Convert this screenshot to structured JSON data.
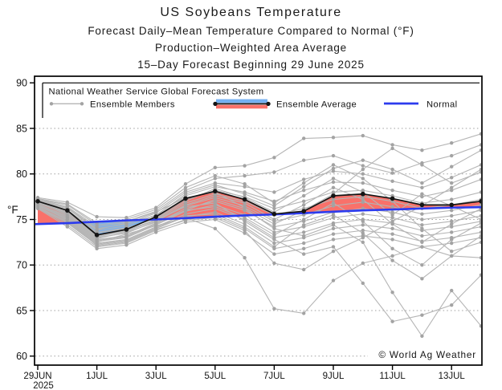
{
  "titles": {
    "main": "US Soybeans Temperature",
    "sub1": "Forecast Daily–Mean Temperature Compared to Normal (°F)",
    "sub2": "Production–Weighted Area Average",
    "sub3": "15–Day Forecast Beginning 29 June 2025"
  },
  "watermark": "© World Ag Weather",
  "chart_data": {
    "type": "line",
    "title": "US Soybeans Temperature",
    "ylabel": "°F",
    "ylim": [
      59,
      91
    ],
    "y_ticks": [
      60,
      65,
      70,
      75,
      80,
      85,
      90
    ],
    "grid": "dotted horizontal",
    "x_tick_labels": [
      "29JUN",
      "1JUL",
      "3JUL",
      "5JUL",
      "7JUL",
      "9JUL",
      "11JUL",
      "13JUL"
    ],
    "x_tick_days": [
      0,
      2,
      4,
      6,
      8,
      10,
      12,
      14
    ],
    "x_year": "2025",
    "dates": [
      "29JUN",
      "30JUN",
      "1JUL",
      "2JUL",
      "3JUL",
      "4JUL",
      "5JUL",
      "6JUL",
      "7JUL",
      "8JUL",
      "9JUL",
      "10JUL",
      "11JUL",
      "12JUL",
      "13JUL",
      "14JUL"
    ],
    "ensemble_average": [
      77.0,
      76.0,
      73.3,
      73.9,
      75.3,
      77.3,
      78.1,
      77.2,
      75.6,
      75.9,
      77.6,
      77.8,
      77.3,
      76.6,
      76.6,
      77.0
    ],
    "normal": [
      74.5,
      74.6,
      74.75,
      74.9,
      75.0,
      75.15,
      75.3,
      75.45,
      75.55,
      75.7,
      75.85,
      76.0,
      76.1,
      76.2,
      76.3,
      76.35
    ],
    "members": [
      [
        77.4,
        76.9,
        75.3,
        75.2,
        76.3,
        78.9,
        80.7,
        80.9,
        81.8,
        83.9,
        84.0,
        84.2,
        83.2,
        82.6,
        83.4,
        84.4
      ],
      [
        77.2,
        76.6,
        74.4,
        74.8,
        75.9,
        78.2,
        79.5,
        79.8,
        80.2,
        81.5,
        82.0,
        80.9,
        80.1,
        81.2,
        82.0,
        83.2
      ],
      [
        77.1,
        76.3,
        74.0,
        74.5,
        75.7,
        78.0,
        79.0,
        78.6,
        78.0,
        79.4,
        80.3,
        80.0,
        79.2,
        78.5,
        79.6,
        81.0
      ],
      [
        77.0,
        76.0,
        73.8,
        74.3,
        75.5,
        77.6,
        78.6,
        78.0,
        77.0,
        78.2,
        79.1,
        79.0,
        78.2,
        77.5,
        78.2,
        79.4
      ],
      [
        76.9,
        75.8,
        73.5,
        74.0,
        75.2,
        77.2,
        78.2,
        77.5,
        76.2,
        77.0,
        78.0,
        78.2,
        77.6,
        76.8,
        77.2,
        78.0
      ],
      [
        76.8,
        75.6,
        73.2,
        73.8,
        75.0,
        76.8,
        77.8,
        77.0,
        75.5,
        76.2,
        77.2,
        77.5,
        77.0,
        76.2,
        76.6,
        77.2
      ],
      [
        76.7,
        75.4,
        73.0,
        73.5,
        74.8,
        76.5,
        77.4,
        76.5,
        74.8,
        75.5,
        76.5,
        76.9,
        76.4,
        75.6,
        76.0,
        76.6
      ],
      [
        76.6,
        75.2,
        72.8,
        73.2,
        74.6,
        76.2,
        77.0,
        76.0,
        74.2,
        74.8,
        75.8,
        76.2,
        75.8,
        75.0,
        75.4,
        76.0
      ],
      [
        76.5,
        75.0,
        72.6,
        73.0,
        74.4,
        75.9,
        76.6,
        75.5,
        73.6,
        74.2,
        75.2,
        75.6,
        75.2,
        74.4,
        74.8,
        75.4
      ],
      [
        76.4,
        74.8,
        72.4,
        72.8,
        74.2,
        75.6,
        76.2,
        75.0,
        73.0,
        73.6,
        74.6,
        75.0,
        74.6,
        73.8,
        74.2,
        74.8
      ],
      [
        76.3,
        74.6,
        72.2,
        72.6,
        74.0,
        75.3,
        75.8,
        74.5,
        72.4,
        73.0,
        74.0,
        74.4,
        74.0,
        73.2,
        73.6,
        74.2
      ],
      [
        76.3,
        74.4,
        72.0,
        72.4,
        73.8,
        75.0,
        75.4,
        74.0,
        71.8,
        72.4,
        73.4,
        73.8,
        73.4,
        72.6,
        73.0,
        73.6
      ],
      [
        76.2,
        74.2,
        71.8,
        72.2,
        73.6,
        74.7,
        75.0,
        73.5,
        71.2,
        71.8,
        72.8,
        73.2,
        72.8,
        72.0,
        72.4,
        73.0
      ],
      [
        76.6,
        74.9,
        72.5,
        73.4,
        74.3,
        75.2,
        74.0,
        70.8,
        65.2,
        64.7,
        68.3,
        70.2,
        71.0,
        72.0,
        71.0,
        70.8
      ],
      [
        76.9,
        75.5,
        73.1,
        73.7,
        74.9,
        76.4,
        76.8,
        74.8,
        72.8,
        71.2,
        72.0,
        68.0,
        63.8,
        64.5,
        65.6,
        68.9
      ],
      [
        76.7,
        75.3,
        72.9,
        73.6,
        74.7,
        76.0,
        77.2,
        76.2,
        74.0,
        73.2,
        74.4,
        72.5,
        67.0,
        62.2,
        67.2,
        63.3
      ],
      [
        77.3,
        76.7,
        74.6,
        75.0,
        76.1,
        78.5,
        79.8,
        78.9,
        76.8,
        79.0,
        81.0,
        79.5,
        77.0,
        74.0,
        71.5,
        72.5
      ],
      [
        77.0,
        76.2,
        73.9,
        74.6,
        75.4,
        77.8,
        78.8,
        77.8,
        76.5,
        78.6,
        80.6,
        81.5,
        80.5,
        79.0,
        80.8,
        82.6
      ],
      [
        76.9,
        75.9,
        73.6,
        74.1,
        75.1,
        77.0,
        78.4,
        77.4,
        75.8,
        77.6,
        79.5,
        78.0,
        75.5,
        77.8,
        76.5,
        75.0
      ],
      [
        76.8,
        75.7,
        73.3,
        73.9,
        74.9,
        76.6,
        77.6,
        76.8,
        75.0,
        76.6,
        78.5,
        77.2,
        74.5,
        72.5,
        74.5,
        76.2
      ],
      [
        76.5,
        75.1,
        72.7,
        73.1,
        74.5,
        76.0,
        76.4,
        75.2,
        73.3,
        75.0,
        76.8,
        74.8,
        71.8,
        70.0,
        72.8,
        74.6
      ],
      [
        76.4,
        74.7,
        72.3,
        72.7,
        74.1,
        75.4,
        75.6,
        74.2,
        72.0,
        74.4,
        75.5,
        73.5,
        70.5,
        68.5,
        71.0,
        73.2
      ],
      [
        77.2,
        76.4,
        74.2,
        74.7,
        75.8,
        77.4,
        78.0,
        76.3,
        74.5,
        76.0,
        77.8,
        80.5,
        82.8,
        81.0,
        79.0,
        80.2
      ],
      [
        76.6,
        75.0,
        72.1,
        72.5,
        73.9,
        74.9,
        75.2,
        73.8,
        70.2,
        69.5,
        71.5,
        73.0,
        74.8,
        76.5,
        78.5,
        80.5
      ]
    ],
    "legend": {
      "header": "National Weather Service Global Forecast System",
      "members_label": "Ensemble Members",
      "average_label": "Ensemble Average",
      "normal_label": "Normal",
      "position": "top inside plot"
    },
    "colors": {
      "member": "#b5b5b5",
      "member_dot": "#a3a3a3",
      "average": "#141414",
      "normal": "#2c3bee",
      "warm_fill": "#f9716a",
      "cool_fill": "#74b0f2",
      "grid": "#9f9f9f",
      "frame": "#000000"
    }
  }
}
